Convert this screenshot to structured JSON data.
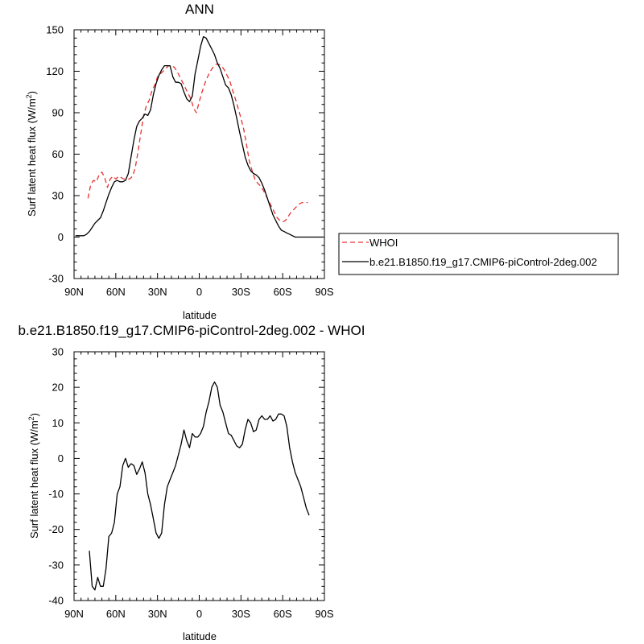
{
  "chart_data": [
    {
      "type": "line",
      "title": "ANN",
      "xlabel": "latitude",
      "ylabel": "Surf latent heat flux (W/m²)",
      "ylabel_main": "Surf latent heat flux (W/m",
      "ylabel_sup": "2",
      "ylabel_end": ")",
      "xlim": [
        90,
        -90
      ],
      "ylim": [
        -30,
        150
      ],
      "xticks": [
        90,
        60,
        30,
        0,
        -30,
        -60,
        -90
      ],
      "xtick_labels": [
        "90N",
        "60N",
        "30N",
        "0",
        "30S",
        "60S",
        "90S"
      ],
      "yticks": [
        -30,
        0,
        30,
        60,
        90,
        120,
        150
      ],
      "ytick_labels": [
        "-30",
        "0",
        "30",
        "60",
        "90",
        "120",
        "150"
      ],
      "legend": {
        "placement": "right",
        "entries": [
          "WHOI",
          "b.e21.B1850.f19_g17.CMIP6-piControl-2deg.002"
        ]
      },
      "series": [
        {
          "name": "WHOI",
          "style": "dashed",
          "color": "#e8312f",
          "x": [
            80,
            78,
            76,
            74,
            72,
            70,
            68,
            66,
            64,
            62,
            60,
            58,
            56,
            54,
            52,
            50,
            48,
            46,
            44,
            42,
            40,
            38,
            36,
            34,
            32,
            30,
            28,
            26,
            24,
            22,
            20,
            18,
            16,
            14,
            12,
            10,
            8,
            6,
            4,
            2,
            0,
            -2,
            -4,
            -6,
            -8,
            -10,
            -12,
            -14,
            -16,
            -18,
            -20,
            -22,
            -24,
            -26,
            -28,
            -30,
            -32,
            -34,
            -36,
            -38,
            -40,
            -42,
            -44,
            -46,
            -48,
            -50,
            -52,
            -54,
            -56,
            -58,
            -60,
            -62,
            -64,
            -66,
            -68,
            -70,
            -72,
            -74,
            -76,
            -78
          ],
          "values": [
            28,
            38,
            41,
            40,
            45,
            47,
            43,
            36,
            42,
            44,
            42,
            44,
            43,
            42,
            42,
            42,
            44,
            50,
            62,
            75,
            88,
            95,
            99,
            106,
            110,
            116,
            118,
            120,
            122,
            124,
            124,
            123,
            120,
            116,
            112,
            108,
            104,
            100,
            93,
            90,
            98,
            105,
            111,
            116,
            120,
            123,
            125,
            125,
            124,
            121,
            117,
            113,
            106,
            100,
            93,
            86,
            78,
            67,
            55,
            48,
            42,
            39,
            37,
            34,
            30,
            26,
            22,
            18,
            14,
            12,
            11,
            12,
            15,
            18,
            20,
            22,
            24,
            25,
            25,
            25
          ]
        },
        {
          "name": "b.e21.B1850.f19_g17.CMIP6-piControl-2deg.002",
          "style": "solid",
          "color": "#000000",
          "x": [
            89,
            87,
            85,
            83,
            81,
            79,
            77,
            75,
            73,
            71,
            69,
            67,
            65,
            63,
            61,
            59,
            57,
            55,
            53,
            51,
            49,
            47,
            45,
            43,
            41,
            39,
            37,
            35,
            33,
            31,
            29,
            27,
            25,
            23,
            21,
            19,
            17,
            15,
            13,
            11,
            9,
            7,
            5,
            3,
            1,
            -1,
            -3,
            -5,
            -7,
            -9,
            -11,
            -13,
            -15,
            -17,
            -19,
            -21,
            -23,
            -25,
            -27,
            -29,
            -31,
            -33,
            -35,
            -37,
            -39,
            -41,
            -43,
            -45,
            -47,
            -49,
            -51,
            -53,
            -55,
            -57,
            -59,
            -61,
            -63,
            -65,
            -67,
            -69,
            -71,
            -73,
            -75,
            -77,
            -79,
            -81,
            -83,
            -85,
            -87,
            -89
          ],
          "values": [
            1,
            1,
            1,
            1,
            2,
            4,
            7,
            10,
            12,
            14,
            19,
            25,
            31,
            36,
            40,
            41,
            40,
            40,
            41,
            46,
            58,
            70,
            80,
            84,
            86,
            89,
            88,
            92,
            103,
            111,
            117,
            121,
            124,
            124,
            124,
            116,
            112,
            112,
            111,
            105,
            100,
            98,
            102,
            118,
            128,
            138,
            145,
            144,
            140,
            136,
            132,
            126,
            122,
            116,
            110,
            108,
            103,
            95,
            86,
            76,
            67,
            58,
            52,
            48,
            46,
            45,
            43,
            39,
            34,
            28,
            22,
            16,
            12,
            8,
            5,
            4,
            3,
            2,
            1,
            0,
            0,
            0,
            0,
            0,
            0,
            0,
            0,
            0,
            0,
            0
          ]
        }
      ]
    },
    {
      "type": "line",
      "title": "b.e21.B1850.f19_g17.CMIP6-piControl-2deg.002 - WHOI",
      "xlabel": "latitude",
      "ylabel": "Surf latent heat flux (W/m²)",
      "ylabel_main": "Surf latent heat flux (W/m",
      "ylabel_sup": "2",
      "ylabel_end": ")",
      "xlim": [
        90,
        -90
      ],
      "ylim": [
        -40,
        30
      ],
      "xticks": [
        90,
        60,
        30,
        0,
        -30,
        -60,
        -90
      ],
      "xtick_labels": [
        "90N",
        "60N",
        "30N",
        "0",
        "30S",
        "60S",
        "90S"
      ],
      "yticks": [
        -40,
        -30,
        -20,
        -10,
        0,
        10,
        20,
        30
      ],
      "ytick_labels": [
        "-40",
        "-30",
        "-20",
        "-10",
        "0",
        "10",
        "20",
        "30"
      ],
      "series": [
        {
          "style": "solid",
          "color": "#000000",
          "x": [
            79,
            77,
            75,
            73,
            71,
            69,
            67,
            65,
            63,
            61,
            59,
            57,
            55,
            53,
            51,
            49,
            47,
            45,
            43,
            41,
            39,
            37,
            35,
            33,
            31,
            29,
            27,
            25,
            23,
            21,
            19,
            17,
            15,
            13,
            11,
            9,
            7,
            5,
            3,
            1,
            -1,
            -3,
            -5,
            -7,
            -9,
            -11,
            -13,
            -15,
            -17,
            -19,
            -21,
            -23,
            -25,
            -27,
            -29,
            -31,
            -33,
            -35,
            -37,
            -39,
            -41,
            -43,
            -45,
            -47,
            -49,
            -51,
            -53,
            -55,
            -57,
            -59,
            -61,
            -63,
            -65,
            -67,
            -69,
            -71,
            -73,
            -75,
            -77,
            -79
          ],
          "values": [
            -26,
            -36,
            -37,
            -33.5,
            -36,
            -36,
            -31,
            -22,
            -21,
            -18,
            -10,
            -8,
            -2,
            0,
            -2.5,
            -1.5,
            -2,
            -4.5,
            -3,
            -1,
            -4,
            -10,
            -13,
            -17,
            -21,
            -22.5,
            -21,
            -13,
            -8,
            -6,
            -4,
            -2,
            1,
            4,
            8,
            5,
            3,
            7,
            6,
            6,
            7,
            9,
            13,
            16,
            20,
            21.5,
            20,
            15,
            13,
            10,
            7,
            6.5,
            5,
            3.5,
            3,
            4,
            8,
            11,
            10,
            7.5,
            8,
            11,
            12,
            11,
            11,
            12,
            10.5,
            11,
            12.5,
            12.5,
            12,
            9,
            3,
            -1,
            -4,
            -6,
            -8,
            -11,
            -14,
            -16
          ]
        }
      ]
    }
  ]
}
